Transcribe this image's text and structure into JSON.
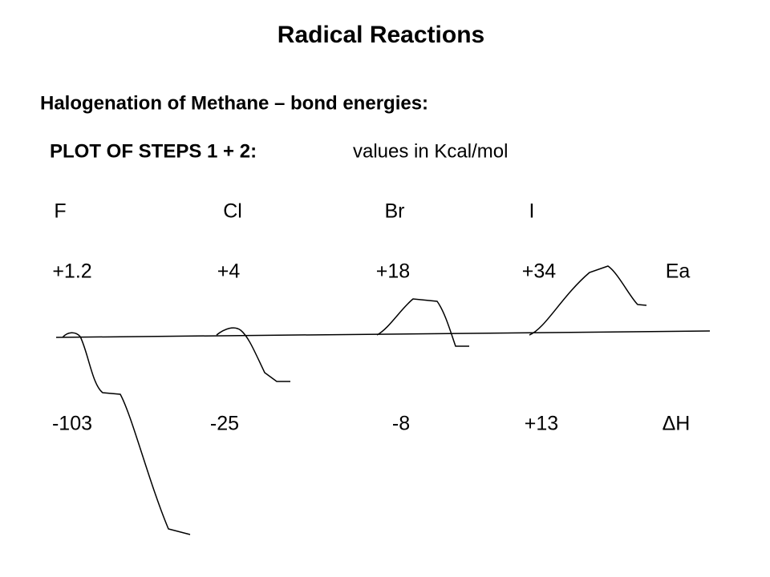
{
  "header": {
    "title": "Radical Reactions",
    "subtitle": "Halogenation of Methane – bond energies:"
  },
  "plot": {
    "heading": "PLOT OF STEPS 1 + 2:",
    "units": "values in Kcal/mol",
    "halogens": [
      "F",
      "Cl",
      "Br",
      "I"
    ],
    "ea": {
      "label": "Ea",
      "values": [
        "+1.2",
        "+4",
        "+18",
        "+34"
      ]
    },
    "dh": {
      "label": "ΔH",
      "values": [
        "-103",
        "-25",
        "-8",
        "+13"
      ]
    }
  }
}
